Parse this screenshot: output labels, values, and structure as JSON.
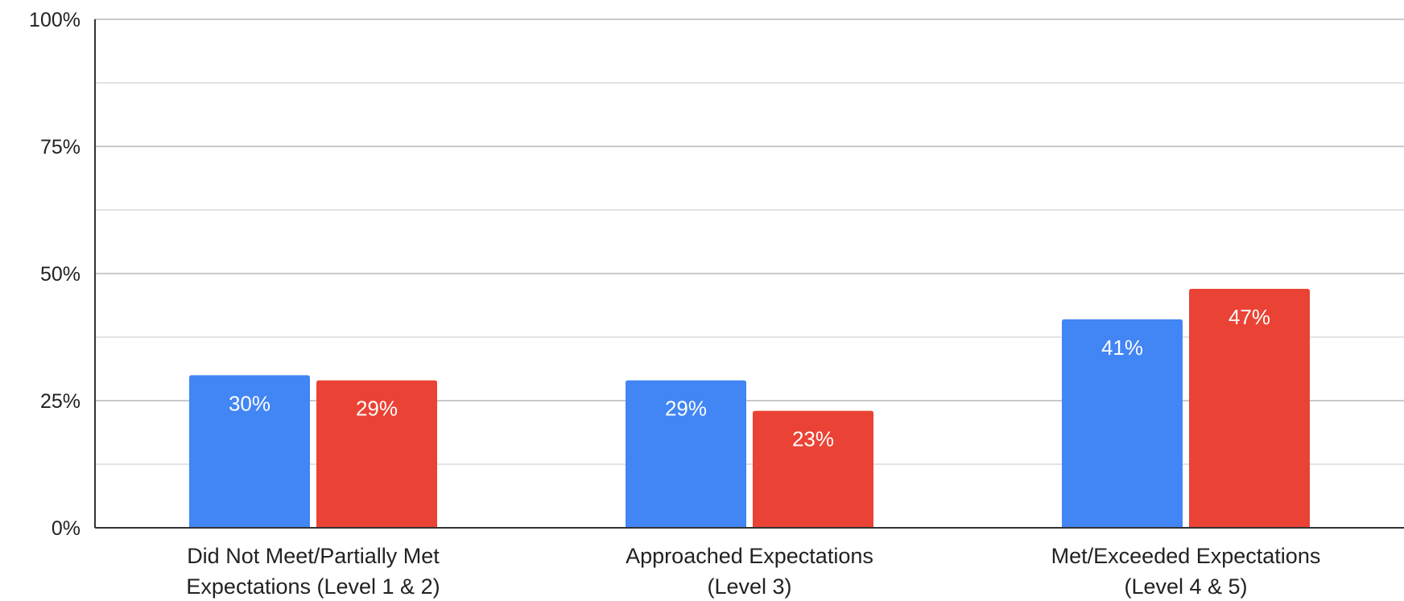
{
  "chart_data": {
    "type": "bar",
    "categories": [
      [
        "Did Not Meet/Partially Met",
        "Expectations (Level 1 & 2)"
      ],
      [
        "Approached Expectations",
        "(Level 3)"
      ],
      [
        "Met/Exceeded Expectations",
        "(Level 4 & 5)"
      ]
    ],
    "series": [
      {
        "color": "#4285f4",
        "values": [
          30,
          29,
          41
        ],
        "labels": [
          "30%",
          "29%",
          "41%"
        ]
      },
      {
        "color": "#ea4335",
        "values": [
          29,
          23,
          47
        ],
        "labels": [
          "29%",
          "23%",
          "47%"
        ]
      }
    ],
    "ylim": [
      0,
      100
    ],
    "yticks": [
      0,
      25,
      50,
      75,
      100
    ],
    "ytick_labels": [
      "0%",
      "25%",
      "50%",
      "75%",
      "100%"
    ],
    "minor_gridlines": true,
    "legend": "none"
  }
}
